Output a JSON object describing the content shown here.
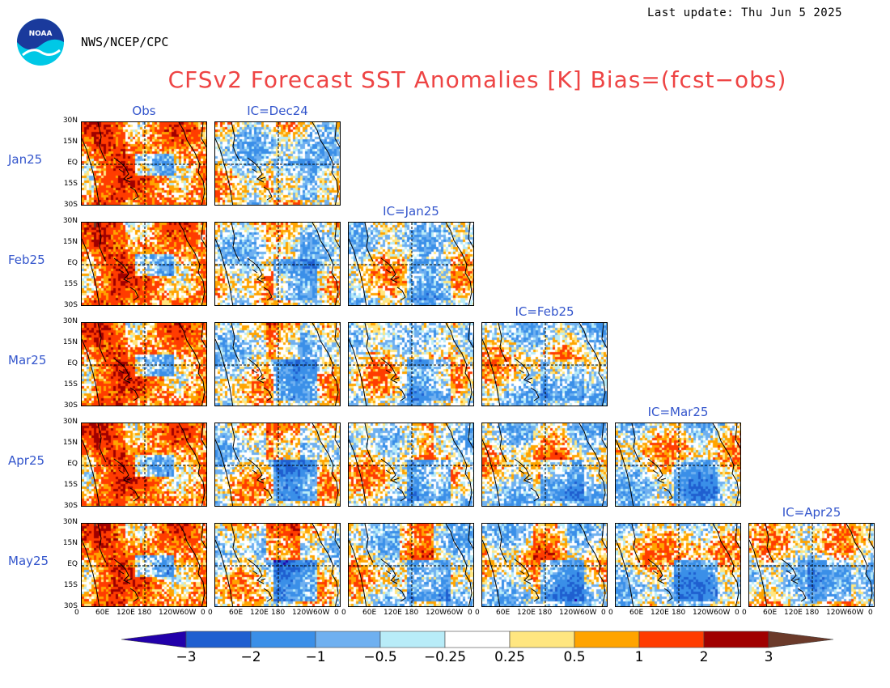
{
  "header": {
    "last_update": "Last update: Thu Jun 5 2025",
    "agency": "NWS/NCEP/CPC",
    "title": "CFSv2 Forecast SST Anomalies [K] Bias=(fcst−obs)"
  },
  "logo": {
    "text": "NOAA"
  },
  "colors": {
    "title": "#ee4444",
    "labels": "#3355cc",
    "scale": [
      "#2200aa",
      "#1f5fd0",
      "#3a8fe8",
      "#6fb0f0",
      "#b8ecf8",
      "#ffffff",
      "#ffe680",
      "#ffa400",
      "#ff3c00",
      "#a00000",
      "#6b3a2a"
    ]
  },
  "chart_data": {
    "type": "heatmap",
    "variable": "SST anomaly / bias [K]",
    "row_labels": [
      "Jan25",
      "Feb25",
      "Mar25",
      "Apr25",
      "May25"
    ],
    "column_labels": [
      "Obs",
      "IC=Dec24",
      "IC=Jan25",
      "IC=Feb25",
      "IC=Mar25",
      "IC=Apr25"
    ],
    "y_ticks": [
      "30N",
      "15N",
      "EQ",
      "15S",
      "30S"
    ],
    "x_ticks": [
      "0",
      "60E",
      "120E",
      "180",
      "120W",
      "60W",
      "0"
    ],
    "colorbar": {
      "levels": [
        "−3",
        "−2",
        "−1",
        "−0.5",
        "−0.25",
        "0.25",
        "0.5",
        "1",
        "2",
        "3"
      ],
      "values": [
        -3,
        -2,
        -1,
        -0.5,
        -0.25,
        0.25,
        0.5,
        1,
        2,
        3
      ]
    },
    "panels_per_row": [
      2,
      3,
      4,
      5,
      6
    ]
  }
}
